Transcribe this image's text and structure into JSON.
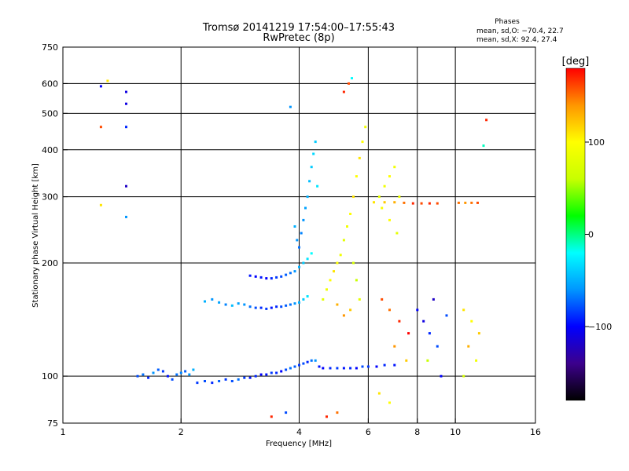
{
  "chart_data": {
    "type": "scatter",
    "title": "Tromsø 20141219 17:54:00–17:55:43",
    "subtitle": "RwPretec (8p)",
    "xlabel": "Frequency [MHz]",
    "ylabel": "Stationary phase Virtual Height [km]",
    "x_scale": "log",
    "y_scale": "log",
    "xlim": [
      1,
      16
    ],
    "ylim": [
      75,
      750
    ],
    "x_ticks": [
      1,
      2,
      4,
      6,
      8,
      10,
      16
    ],
    "y_ticks": [
      75,
      100,
      200,
      300,
      400,
      500,
      600,
      750
    ],
    "grid": true,
    "stats": {
      "heading": "Phases",
      "o_line": "mean, sd,O: −70.4, 22.7",
      "x_line": "mean, sd,X:  92.4, 27.4"
    },
    "colorbar": {
      "label": "[deg]",
      "min": -180,
      "max": 180,
      "ticks": [
        100,
        0,
        -100
      ],
      "tick_labels": [
        "100",
        "0",
        "−100"
      ],
      "colors": [
        "#000000",
        "#3c008c",
        "#0000ff",
        "#0096ff",
        "#00ffff",
        "#00ff00",
        "#c8ff00",
        "#ffff00",
        "#ff9600",
        "#ff0000"
      ]
    },
    "series": [
      {
        "points": [
          [
            1.55,
            100,
            -80
          ],
          [
            1.6,
            101,
            -70
          ],
          [
            1.65,
            99,
            -90
          ],
          [
            1.7,
            102,
            -60
          ],
          [
            1.75,
            104,
            -75
          ],
          [
            1.8,
            103,
            -85
          ],
          [
            1.85,
            100,
            -95
          ],
          [
            1.9,
            98,
            -80
          ],
          [
            1.95,
            101,
            -70
          ],
          [
            2.0,
            102,
            -65
          ],
          [
            2.05,
            103,
            -75
          ],
          [
            2.1,
            101,
            -60
          ],
          [
            2.15,
            104,
            -50
          ],
          [
            2.2,
            96,
            -85
          ],
          [
            2.3,
            97,
            -80
          ],
          [
            2.4,
            96,
            -90
          ],
          [
            2.5,
            97,
            -75
          ],
          [
            2.6,
            98,
            -85
          ],
          [
            2.7,
            97,
            -80
          ],
          [
            2.8,
            98,
            -70
          ],
          [
            2.9,
            99,
            -85
          ],
          [
            3.0,
            99,
            -95
          ],
          [
            3.1,
            100,
            -90
          ],
          [
            3.2,
            101,
            -100
          ],
          [
            3.3,
            101,
            -95
          ],
          [
            3.4,
            102,
            -85
          ],
          [
            3.5,
            102,
            -90
          ],
          [
            3.6,
            103,
            -100
          ],
          [
            3.7,
            104,
            -80
          ],
          [
            3.8,
            105,
            -70
          ],
          [
            3.9,
            106,
            -75
          ],
          [
            4.0,
            107,
            -85
          ],
          [
            4.1,
            108,
            -80
          ],
          [
            4.2,
            109,
            -90
          ],
          [
            4.3,
            110,
            -70
          ],
          [
            4.4,
            110,
            -60
          ],
          [
            4.5,
            106,
            -95
          ],
          [
            4.6,
            105,
            -100
          ],
          [
            4.8,
            105,
            -90
          ],
          [
            5.0,
            105,
            -85
          ],
          [
            5.2,
            105,
            -95
          ],
          [
            5.4,
            105,
            -90
          ],
          [
            5.6,
            105,
            -100
          ],
          [
            5.8,
            106,
            -80
          ],
          [
            6.0,
            106,
            -85
          ],
          [
            6.3,
            106,
            -100
          ],
          [
            6.6,
            107,
            -90
          ],
          [
            7.0,
            107,
            -95
          ]
        ]
      },
      {
        "points": [
          [
            2.3,
            158,
            -50
          ],
          [
            2.4,
            160,
            -60
          ],
          [
            2.5,
            157,
            -55
          ],
          [
            2.6,
            155,
            -65
          ],
          [
            2.7,
            154,
            -45
          ],
          [
            2.8,
            156,
            -55
          ],
          [
            2.9,
            155,
            -60
          ],
          [
            3.0,
            153,
            -70
          ],
          [
            3.1,
            152,
            -80
          ],
          [
            3.2,
            152,
            -90
          ],
          [
            3.3,
            151,
            -85
          ],
          [
            3.4,
            152,
            -95
          ],
          [
            3.5,
            153,
            -90
          ],
          [
            3.6,
            153,
            -80
          ],
          [
            3.7,
            154,
            -75
          ],
          [
            3.8,
            155,
            -70
          ],
          [
            3.9,
            156,
            -60
          ],
          [
            4.0,
            157,
            -50
          ],
          [
            4.1,
            160,
            -40
          ],
          [
            4.2,
            163,
            -30
          ]
        ]
      },
      {
        "points": [
          [
            3.0,
            185,
            -95
          ],
          [
            3.1,
            184,
            -100
          ],
          [
            3.2,
            183,
            -95
          ],
          [
            3.3,
            182,
            -100
          ],
          [
            3.4,
            182,
            -90
          ],
          [
            3.5,
            183,
            -85
          ],
          [
            3.6,
            184,
            -80
          ],
          [
            3.7,
            186,
            -75
          ],
          [
            3.8,
            188,
            -70
          ],
          [
            3.9,
            190,
            -60
          ],
          [
            4.0,
            195,
            -50
          ],
          [
            4.1,
            200,
            -40
          ],
          [
            4.2,
            205,
            -30
          ],
          [
            4.3,
            212,
            -20
          ]
        ]
      },
      {
        "points": [
          [
            4.0,
            220,
            -70
          ],
          [
            4.05,
            240,
            -65
          ],
          [
            4.1,
            260,
            -60
          ],
          [
            4.15,
            280,
            -55
          ],
          [
            4.2,
            300,
            -50
          ],
          [
            4.25,
            330,
            -45
          ],
          [
            4.3,
            360,
            -40
          ],
          [
            4.35,
            390,
            -35
          ],
          [
            4.4,
            420,
            -40
          ],
          [
            3.95,
            230,
            -60
          ],
          [
            3.9,
            250,
            -50
          ],
          [
            4.45,
            320,
            -30
          ]
        ]
      },
      {
        "points": [
          [
            4.6,
            160,
            80
          ],
          [
            4.7,
            170,
            90
          ],
          [
            4.8,
            180,
            100
          ],
          [
            4.9,
            190,
            110
          ],
          [
            5.0,
            200,
            100
          ],
          [
            5.1,
            210,
            90
          ],
          [
            5.2,
            230,
            80
          ],
          [
            5.3,
            250,
            90
          ],
          [
            5.4,
            270,
            100
          ],
          [
            5.5,
            300,
            110
          ],
          [
            5.6,
            340,
            100
          ],
          [
            5.7,
            380,
            110
          ],
          [
            5.8,
            420,
            100
          ],
          [
            5.9,
            460,
            90
          ],
          [
            5.5,
            200,
            70
          ],
          [
            5.6,
            180,
            60
          ],
          [
            5.7,
            160,
            80
          ],
          [
            5.4,
            150,
            120
          ],
          [
            5.2,
            145,
            140
          ],
          [
            5.0,
            155,
            130
          ]
        ]
      },
      {
        "points": [
          [
            6.4,
            300,
            80
          ],
          [
            6.6,
            320,
            90
          ],
          [
            6.8,
            340,
            100
          ],
          [
            7.0,
            360,
            90
          ],
          [
            7.2,
            300,
            85
          ],
          [
            6.5,
            280,
            95
          ],
          [
            6.8,
            260,
            100
          ],
          [
            7.1,
            240,
            80
          ]
        ]
      },
      {
        "points": [
          [
            6.2,
            290,
            110
          ],
          [
            6.6,
            290,
            120
          ],
          [
            7.0,
            290,
            130
          ],
          [
            7.4,
            289,
            150
          ],
          [
            7.8,
            288,
            170
          ],
          [
            8.2,
            288,
            160
          ],
          [
            8.6,
            288,
            170
          ],
          [
            9.0,
            288,
            160
          ],
          [
            10.2,
            289,
            150
          ],
          [
            10.6,
            289,
            140
          ],
          [
            11.0,
            289,
            150
          ],
          [
            11.4,
            289,
            160
          ]
        ]
      },
      {
        "points": [
          [
            8.0,
            150,
            -100
          ],
          [
            8.3,
            140,
            -110
          ],
          [
            8.6,
            130,
            -90
          ],
          [
            9.0,
            120,
            -80
          ],
          [
            8.5,
            110,
            60
          ],
          [
            9.2,
            100,
            -100
          ],
          [
            8.8,
            160,
            -120
          ],
          [
            9.5,
            145,
            -80
          ],
          [
            10.5,
            150,
            110
          ],
          [
            11.0,
            140,
            100
          ],
          [
            11.5,
            130,
            120
          ],
          [
            10.8,
            120,
            130
          ],
          [
            11.3,
            110,
            90
          ],
          [
            10.5,
            100,
            70
          ]
        ]
      },
      {
        "points": [
          [
            6.5,
            160,
            160
          ],
          [
            6.8,
            150,
            150
          ],
          [
            7.2,
            140,
            170
          ],
          [
            7.6,
            130,
            180
          ],
          [
            7.0,
            120,
            140
          ],
          [
            7.5,
            110,
            120
          ],
          [
            6.4,
            90,
            110
          ],
          [
            6.8,
            85,
            100
          ],
          [
            5.0,
            80,
            150
          ],
          [
            4.7,
            78,
            170
          ],
          [
            3.4,
            78,
            170
          ],
          [
            3.7,
            80,
            -80
          ]
        ]
      },
      {
        "points": [
          [
            1.25,
            590,
            -100
          ],
          [
            1.3,
            610,
            110
          ],
          [
            1.45,
            570,
            -110
          ],
          [
            1.45,
            530,
            -110
          ],
          [
            1.25,
            460,
            160
          ],
          [
            1.45,
            460,
            -90
          ],
          [
            1.45,
            320,
            -120
          ],
          [
            1.25,
            285,
            110
          ],
          [
            1.45,
            265,
            -60
          ],
          [
            5.35,
            600,
            160
          ],
          [
            5.45,
            620,
            -20
          ],
          [
            5.2,
            570,
            170
          ],
          [
            3.8,
            520,
            -60
          ],
          [
            12.0,
            480,
            170
          ],
          [
            11.8,
            410,
            -10
          ]
        ]
      }
    ]
  }
}
